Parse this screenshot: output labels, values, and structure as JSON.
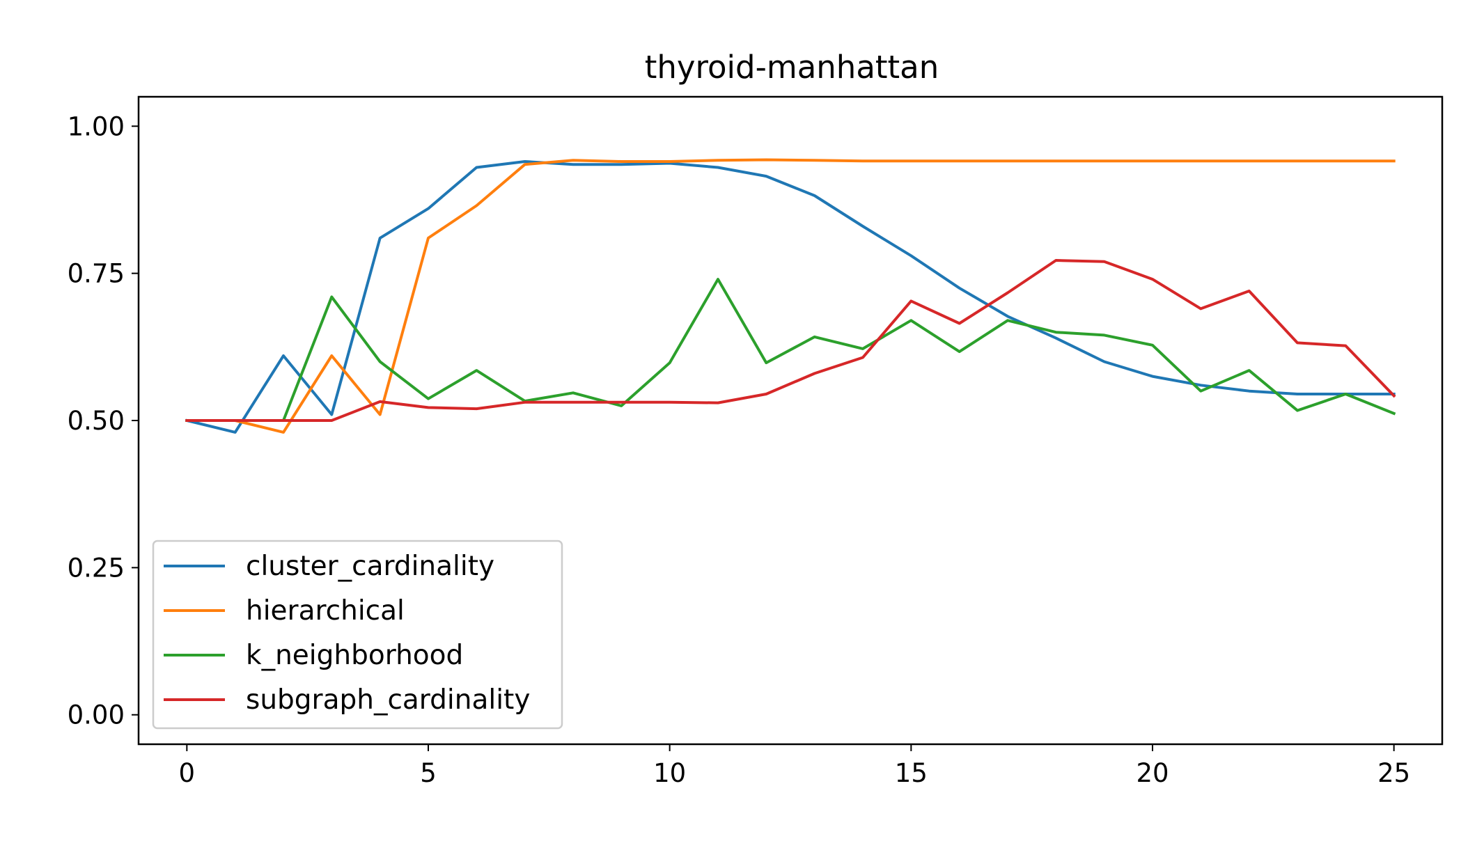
{
  "chart_data": {
    "type": "line",
    "title": "thyroid-manhattan",
    "xlabel": "",
    "ylabel": "",
    "xlim": [
      -1,
      26
    ],
    "ylim": [
      -0.05,
      1.05
    ],
    "xticks": [
      0,
      5,
      10,
      15,
      20,
      25
    ],
    "xtick_labels": [
      "0",
      "5",
      "10",
      "15",
      "20",
      "25"
    ],
    "yticks": [
      0.0,
      0.25,
      0.5,
      0.75,
      1.0
    ],
    "ytick_labels": [
      "0.00",
      "0.25",
      "0.50",
      "0.75",
      "1.00"
    ],
    "grid": false,
    "legend_position": "lower-left",
    "x": [
      0,
      1,
      2,
      3,
      4,
      5,
      6,
      7,
      8,
      9,
      10,
      11,
      12,
      13,
      14,
      15,
      16,
      17,
      18,
      19,
      20,
      21,
      22,
      23,
      24,
      25
    ],
    "series": [
      {
        "name": "cluster_cardinality",
        "color": "#1f77b4",
        "values": [
          0.5,
          0.48,
          0.61,
          0.51,
          0.81,
          0.86,
          0.93,
          0.94,
          0.935,
          0.935,
          0.937,
          0.93,
          0.915,
          0.882,
          0.83,
          0.78,
          0.725,
          0.677,
          0.64,
          0.6,
          0.575,
          0.56,
          0.55,
          0.545,
          0.545,
          0.545
        ]
      },
      {
        "name": "hierarchical",
        "color": "#ff7f0e",
        "values": [
          0.5,
          0.5,
          0.48,
          0.61,
          0.51,
          0.81,
          0.865,
          0.935,
          0.942,
          0.94,
          0.94,
          0.942,
          0.943,
          0.942,
          0.941,
          0.941,
          0.941,
          0.941,
          0.941,
          0.941,
          0.941,
          0.941,
          0.941,
          0.941,
          0.941,
          0.941
        ]
      },
      {
        "name": "k_neighborhood",
        "color": "#2ca02c",
        "values": [
          0.5,
          0.5,
          0.5,
          0.71,
          0.6,
          0.537,
          0.585,
          0.533,
          0.547,
          0.525,
          0.598,
          0.74,
          0.598,
          0.642,
          0.622,
          0.67,
          0.617,
          0.67,
          0.65,
          0.645,
          0.628,
          0.55,
          0.585,
          0.517,
          0.545,
          0.512
        ]
      },
      {
        "name": "subgraph_cardinality",
        "color": "#d62728",
        "values": [
          0.5,
          0.5,
          0.5,
          0.5,
          0.532,
          0.522,
          0.52,
          0.531,
          0.531,
          0.531,
          0.531,
          0.53,
          0.545,
          0.58,
          0.607,
          0.703,
          0.665,
          0.717,
          0.772,
          0.77,
          0.74,
          0.69,
          0.72,
          0.632,
          0.627,
          0.542
        ]
      }
    ]
  }
}
